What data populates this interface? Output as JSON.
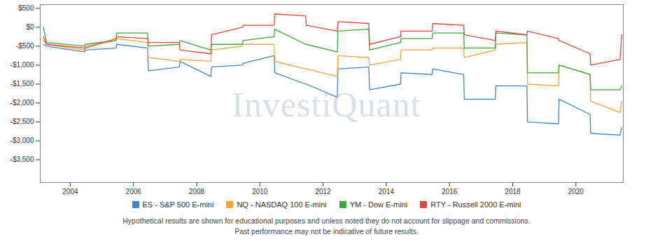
{
  "chart_data": {
    "type": "line",
    "watermark": "InvestiQuant",
    "caption": [
      "Hypothetical results are shown for educational purposes and unless noted they do not account for slippage and commissions.",
      "Past performance may not be indicative of future results."
    ],
    "x": [
      2003.15,
      2003.25,
      2004.45,
      2004.47,
      2005.45,
      2005.47,
      2006.45,
      2006.47,
      2007.45,
      2007.47,
      2008.45,
      2008.47,
      2009.45,
      2009.47,
      2010.45,
      2010.47,
      2011.45,
      2011.47,
      2012.45,
      2012.47,
      2013.45,
      2013.47,
      2014.45,
      2014.47,
      2015.45,
      2015.47,
      2016.45,
      2016.47,
      2017.45,
      2017.47,
      2018.45,
      2018.47,
      2019.45,
      2019.47,
      2020.45,
      2020.47,
      2021.4,
      2021.45
    ],
    "series": [
      {
        "name": "ES - S&P 500 E-mini",
        "color": "#3a87c8",
        "values": [
          -450,
          -500,
          -650,
          -600,
          -550,
          -450,
          -550,
          -1150,
          -1050,
          -900,
          -1300,
          -1050,
          -1000,
          -950,
          -750,
          -1200,
          -1500,
          -1500,
          -1850,
          -1100,
          -1050,
          -1650,
          -1500,
          -1200,
          -1250,
          -1100,
          -1250,
          -1900,
          -1900,
          -1550,
          -1550,
          -2500,
          -2550,
          -1900,
          -2300,
          -2800,
          -2850,
          -2650
        ]
      },
      {
        "name": "NQ - NASDAQ 100 E-mini",
        "color": "#f5a33a",
        "values": [
          -350,
          -450,
          -600,
          -500,
          -350,
          -300,
          -400,
          -800,
          -900,
          -850,
          -900,
          -600,
          -500,
          -450,
          -450,
          -900,
          -1100,
          -1100,
          -1300,
          -750,
          -800,
          -1000,
          -850,
          -600,
          -600,
          -550,
          -550,
          -800,
          -600,
          -450,
          -400,
          -1500,
          -1550,
          -1000,
          -1250,
          -1950,
          -2250,
          -1950
        ]
      },
      {
        "name": "YM - Dow E-mini",
        "color": "#3aa838",
        "values": [
          0,
          -400,
          -500,
          -450,
          -350,
          -150,
          -150,
          -500,
          -450,
          -350,
          -600,
          -450,
          -450,
          -350,
          -250,
          -50,
          -450,
          -450,
          -650,
          -100,
          -50,
          -600,
          -400,
          -300,
          -300,
          -150,
          -150,
          -550,
          -550,
          -150,
          -200,
          -1200,
          -1200,
          -1000,
          -1250,
          -1650,
          -1650,
          -1550
        ]
      },
      {
        "name": "RTY - Russell 2000 E-mini",
        "color": "#e0463b",
        "values": [
          -250,
          -450,
          -550,
          -550,
          -300,
          -250,
          -300,
          -400,
          -400,
          -600,
          -700,
          -200,
          0,
          50,
          50,
          350,
          300,
          50,
          -100,
          150,
          100,
          -450,
          -250,
          -100,
          -100,
          100,
          50,
          -200,
          -350,
          -100,
          -200,
          -100,
          -300,
          -350,
          -700,
          -1000,
          -850,
          -200
        ]
      }
    ],
    "xlim": [
      2003.05,
      2021.5
    ],
    "xticks": [
      2004,
      2006,
      2008,
      2010,
      2012,
      2014,
      2016,
      2018,
      2020
    ],
    "ylim": [
      -4100,
      600
    ],
    "yticks": [
      {
        "value": 500,
        "label": "$500"
      },
      {
        "value": 0,
        "label": "$0"
      },
      {
        "value": -500,
        "label": "-$500"
      },
      {
        "value": -1000,
        "label": "-$1,000"
      },
      {
        "value": -1500,
        "label": "-$1,500"
      },
      {
        "value": -2000,
        "label": "-$2,000"
      },
      {
        "value": -2500,
        "label": "-$2,500"
      },
      {
        "value": -3000,
        "label": "-$3,000"
      },
      {
        "value": -3500,
        "label": "-$3,500"
      }
    ],
    "grid": false,
    "legend": "bottom"
  }
}
